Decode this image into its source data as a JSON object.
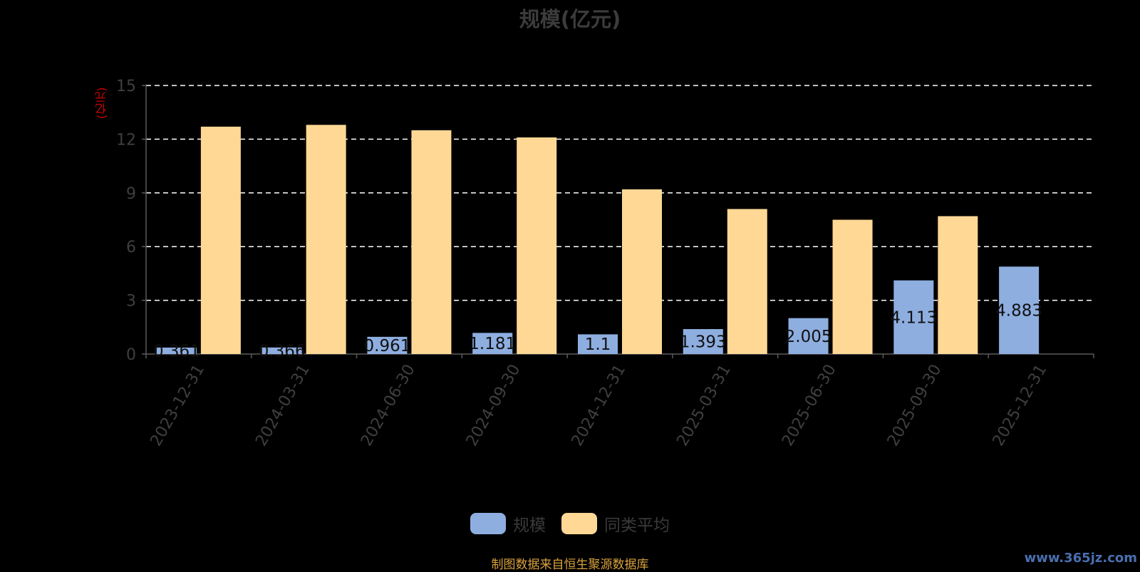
{
  "title": "规模(亿元)",
  "unit_label": "(亿元)",
  "source_note": "制图数据来自恒生聚源数据库",
  "watermark": "www.365jz.com",
  "colors": {
    "background": "#000000",
    "series_scale": "#8eaee0",
    "series_avg": "#ffd895",
    "grid": "#ffffff",
    "axis": "#5a5a5a",
    "tick_text": "#3f3f3f",
    "data_label": "#111111"
  },
  "legend": {
    "items": [
      {
        "label": "规模",
        "color": "#8eaee0"
      },
      {
        "label": "同类平均",
        "color": "#ffd895"
      }
    ]
  },
  "chart_data": {
    "type": "bar",
    "title": "规模(亿元)",
    "ylabel": "(亿元)",
    "xlabel": "",
    "ylim": [
      0,
      15
    ],
    "yticks": [
      0,
      3,
      6,
      9,
      12,
      15
    ],
    "grid": true,
    "legend_position": "bottom",
    "categories": [
      "2023-12-31",
      "2024-03-31",
      "2024-06-30",
      "2024-09-30",
      "2024-12-31",
      "2025-03-31",
      "2025-06-30",
      "2025-09-30",
      "2025-12-31"
    ],
    "series": [
      {
        "name": "规模",
        "values": [
          0.361,
          0.366,
          0.961,
          1.181,
          1.1,
          1.393,
          2.005,
          4.113,
          4.883
        ],
        "labels": [
          "0.361",
          "0.366",
          "0.961",
          "1.181",
          "1.1",
          "1.393",
          "2.005",
          "4.113",
          "4.883"
        ]
      },
      {
        "name": "同类平均",
        "values": [
          12.7,
          12.8,
          12.5,
          12.1,
          9.2,
          8.1,
          7.5,
          7.7,
          null
        ]
      }
    ]
  }
}
